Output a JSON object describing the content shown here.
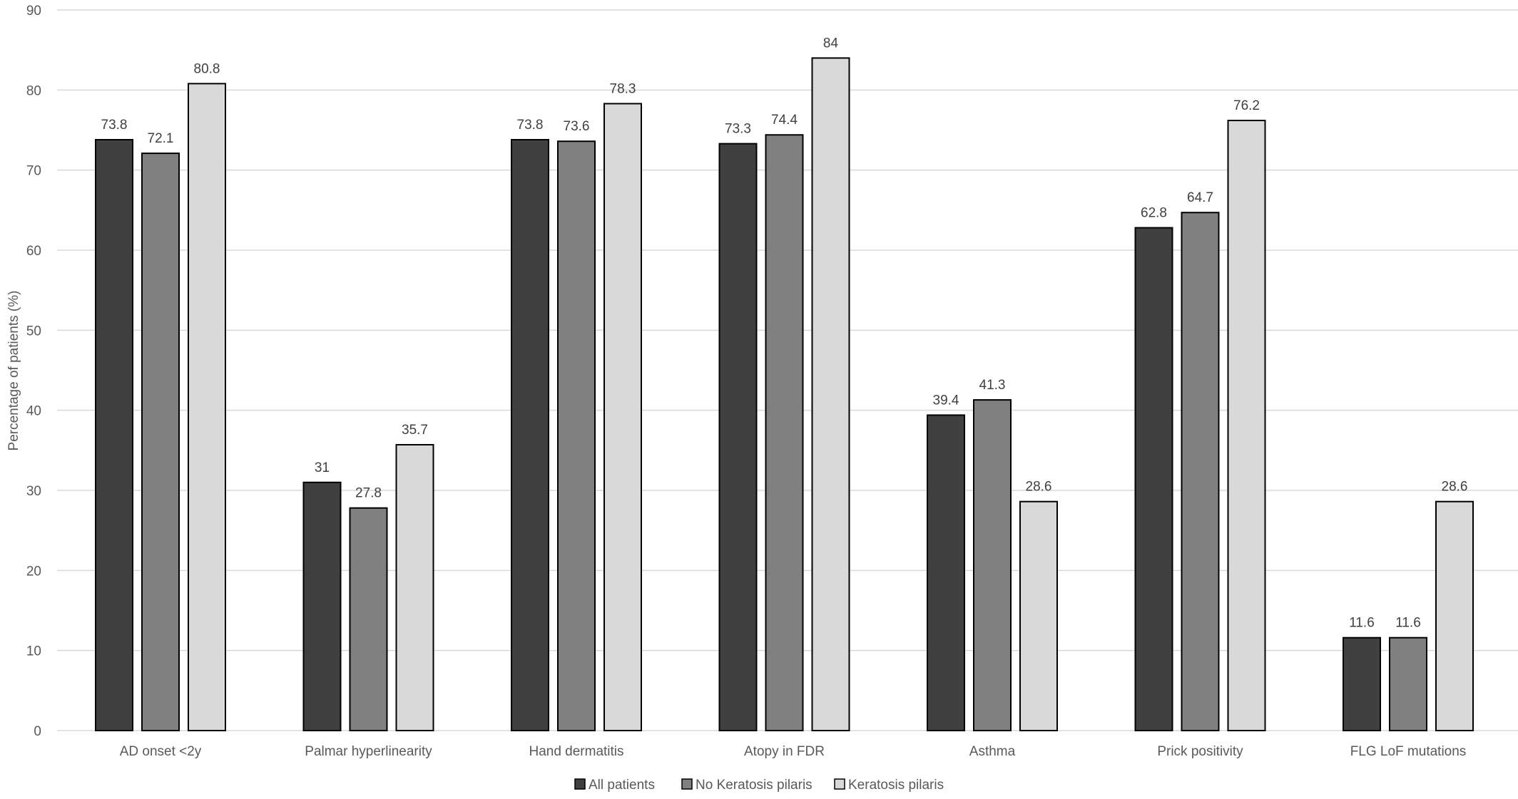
{
  "chart_data": {
    "type": "bar",
    "title": "",
    "xlabel": "",
    "ylabel": "Percentage of patients (%)",
    "ylim": [
      0,
      90
    ],
    "yticks": [
      0,
      10,
      20,
      30,
      40,
      50,
      60,
      70,
      80,
      90
    ],
    "grid": true,
    "legend_position": "bottom",
    "categories": [
      "AD onset <2y",
      "Palmar hyperlinearity",
      "Hand dermatitis",
      "Atopy in FDR",
      "Asthma",
      "Prick positivity",
      "FLG LoF mutations"
    ],
    "series": [
      {
        "name": "All patients",
        "color": "#404040",
        "values": [
          73.8,
          31,
          73.8,
          73.3,
          39.4,
          62.8,
          11.6
        ],
        "labels": [
          "73.8",
          "31",
          "73.8",
          "73.3",
          "39.4",
          "62.8",
          "11.6"
        ]
      },
      {
        "name": "No Keratosis pilaris",
        "color": "#808080",
        "values": [
          72.1,
          27.8,
          73.6,
          74.4,
          41.3,
          64.7,
          11.6
        ],
        "labels": [
          "72.1",
          "27.8",
          "73.6",
          "74.4",
          "41.3",
          "64.7",
          "11.6"
        ]
      },
      {
        "name": "Keratosis pilaris",
        "color": "#d9d9d9",
        "values": [
          80.8,
          35.7,
          78.3,
          84,
          28.6,
          76.2,
          28.6
        ],
        "labels": [
          "80.8",
          "35.7",
          "78.3",
          "84",
          "28.6",
          "76.2",
          "28.6"
        ]
      }
    ]
  }
}
